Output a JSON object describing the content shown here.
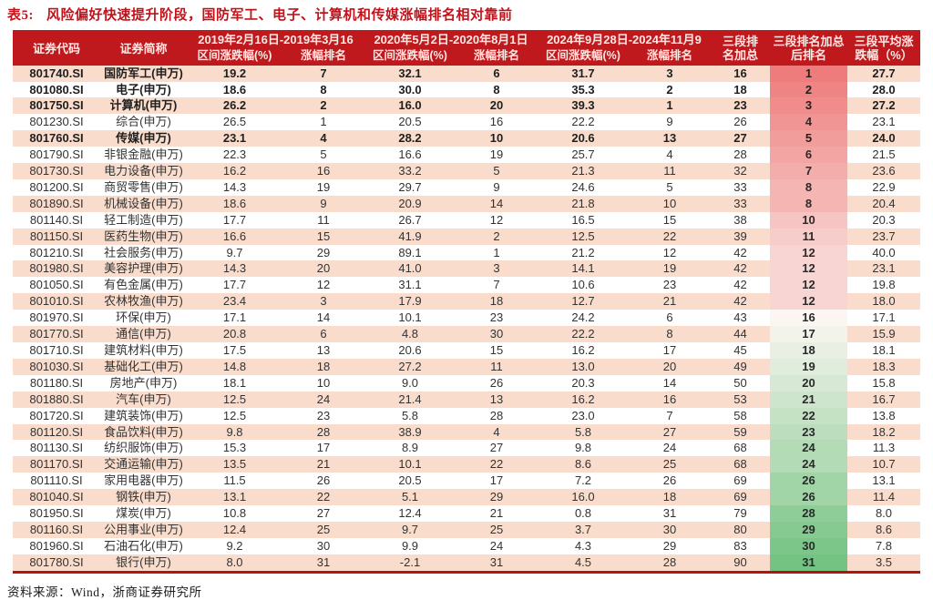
{
  "title": {
    "label": "表5:",
    "text": "风险偏好快速提升阶段，国防军工、电子、计算机和传媒涨幅排名相对靠前"
  },
  "table": {
    "headers": {
      "code": "证券代码",
      "name": "证券简称",
      "period1": "2019年2月16日-2019年3月16",
      "period2": "2020年5月2日-2020年8月1日",
      "period3": "2024年9月28日-2024年11月9",
      "change": "区间涨跌幅(%)",
      "rank": "涨幅排名",
      "sum_line1": "三段排",
      "sum_line2": "名加总",
      "final_line1": "三段排名加总",
      "final_line2": "后排名",
      "avg_line1": "三段平均涨",
      "avg_line2": "跌幅（%）"
    },
    "rows": [
      {
        "code": "801740.SI",
        "name": "国防军工(申万)",
        "p1_chg": "19.2",
        "p1_rank": "7",
        "p2_chg": "32.1",
        "p2_rank": "6",
        "p3_chg": "31.7",
        "p3_rank": "3",
        "rank_sum": "16",
        "final_rank": "1",
        "avg_chg": "27.7",
        "bold": true
      },
      {
        "code": "801080.SI",
        "name": "电子(申万)",
        "p1_chg": "18.6",
        "p1_rank": "8",
        "p2_chg": "30.0",
        "p2_rank": "8",
        "p3_chg": "35.3",
        "p3_rank": "2",
        "rank_sum": "18",
        "final_rank": "2",
        "avg_chg": "28.0",
        "bold": true
      },
      {
        "code": "801750.SI",
        "name": "计算机(申万)",
        "p1_chg": "26.2",
        "p1_rank": "2",
        "p2_chg": "16.0",
        "p2_rank": "20",
        "p3_chg": "39.3",
        "p3_rank": "1",
        "rank_sum": "23",
        "final_rank": "3",
        "avg_chg": "27.2",
        "bold": true
      },
      {
        "code": "801230.SI",
        "name": "综合(申万)",
        "p1_chg": "26.5",
        "p1_rank": "1",
        "p2_chg": "20.5",
        "p2_rank": "16",
        "p3_chg": "22.2",
        "p3_rank": "9",
        "rank_sum": "26",
        "final_rank": "4",
        "avg_chg": "23.1",
        "bold": false
      },
      {
        "code": "801760.SI",
        "name": "传媒(申万)",
        "p1_chg": "23.1",
        "p1_rank": "4",
        "p2_chg": "28.2",
        "p2_rank": "10",
        "p3_chg": "20.6",
        "p3_rank": "13",
        "rank_sum": "27",
        "final_rank": "5",
        "avg_chg": "24.0",
        "bold": true
      },
      {
        "code": "801790.SI",
        "name": "非银金融(申万)",
        "p1_chg": "22.3",
        "p1_rank": "5",
        "p2_chg": "16.6",
        "p2_rank": "19",
        "p3_chg": "25.7",
        "p3_rank": "4",
        "rank_sum": "28",
        "final_rank": "6",
        "avg_chg": "21.5",
        "bold": false
      },
      {
        "code": "801730.SI",
        "name": "电力设备(申万)",
        "p1_chg": "16.2",
        "p1_rank": "16",
        "p2_chg": "33.2",
        "p2_rank": "5",
        "p3_chg": "21.3",
        "p3_rank": "11",
        "rank_sum": "32",
        "final_rank": "7",
        "avg_chg": "23.6",
        "bold": false
      },
      {
        "code": "801200.SI",
        "name": "商贸零售(申万)",
        "p1_chg": "14.3",
        "p1_rank": "19",
        "p2_chg": "29.7",
        "p2_rank": "9",
        "p3_chg": "24.6",
        "p3_rank": "5",
        "rank_sum": "33",
        "final_rank": "8",
        "avg_chg": "22.9",
        "bold": false
      },
      {
        "code": "801890.SI",
        "name": "机械设备(申万)",
        "p1_chg": "18.6",
        "p1_rank": "9",
        "p2_chg": "20.9",
        "p2_rank": "14",
        "p3_chg": "21.8",
        "p3_rank": "10",
        "rank_sum": "33",
        "final_rank": "8",
        "avg_chg": "20.4",
        "bold": false
      },
      {
        "code": "801140.SI",
        "name": "轻工制造(申万)",
        "p1_chg": "17.7",
        "p1_rank": "11",
        "p2_chg": "26.7",
        "p2_rank": "12",
        "p3_chg": "16.5",
        "p3_rank": "15",
        "rank_sum": "38",
        "final_rank": "10",
        "avg_chg": "20.3",
        "bold": false
      },
      {
        "code": "801150.SI",
        "name": "医药生物(申万)",
        "p1_chg": "16.6",
        "p1_rank": "15",
        "p2_chg": "41.9",
        "p2_rank": "2",
        "p3_chg": "12.5",
        "p3_rank": "22",
        "rank_sum": "39",
        "final_rank": "11",
        "avg_chg": "23.7",
        "bold": false
      },
      {
        "code": "801210.SI",
        "name": "社会服务(申万)",
        "p1_chg": "9.7",
        "p1_rank": "29",
        "p2_chg": "89.1",
        "p2_rank": "1",
        "p3_chg": "21.2",
        "p3_rank": "12",
        "rank_sum": "42",
        "final_rank": "12",
        "avg_chg": "40.0",
        "bold": false
      },
      {
        "code": "801980.SI",
        "name": "美容护理(申万)",
        "p1_chg": "14.3",
        "p1_rank": "20",
        "p2_chg": "41.0",
        "p2_rank": "3",
        "p3_chg": "14.1",
        "p3_rank": "19",
        "rank_sum": "42",
        "final_rank": "12",
        "avg_chg": "23.1",
        "bold": false
      },
      {
        "code": "801050.SI",
        "name": "有色金属(申万)",
        "p1_chg": "17.7",
        "p1_rank": "12",
        "p2_chg": "31.1",
        "p2_rank": "7",
        "p3_chg": "10.6",
        "p3_rank": "23",
        "rank_sum": "42",
        "final_rank": "12",
        "avg_chg": "19.8",
        "bold": false
      },
      {
        "code": "801010.SI",
        "name": "农林牧渔(申万)",
        "p1_chg": "23.4",
        "p1_rank": "3",
        "p2_chg": "17.9",
        "p2_rank": "18",
        "p3_chg": "12.7",
        "p3_rank": "21",
        "rank_sum": "42",
        "final_rank": "12",
        "avg_chg": "18.0",
        "bold": false
      },
      {
        "code": "801970.SI",
        "name": "环保(申万)",
        "p1_chg": "17.1",
        "p1_rank": "14",
        "p2_chg": "10.1",
        "p2_rank": "23",
        "p3_chg": "24.2",
        "p3_rank": "6",
        "rank_sum": "43",
        "final_rank": "16",
        "avg_chg": "17.1",
        "bold": false
      },
      {
        "code": "801770.SI",
        "name": "通信(申万)",
        "p1_chg": "20.8",
        "p1_rank": "6",
        "p2_chg": "4.8",
        "p2_rank": "30",
        "p3_chg": "22.2",
        "p3_rank": "8",
        "rank_sum": "44",
        "final_rank": "17",
        "avg_chg": "15.9",
        "bold": false
      },
      {
        "code": "801710.SI",
        "name": "建筑材料(申万)",
        "p1_chg": "17.5",
        "p1_rank": "13",
        "p2_chg": "20.6",
        "p2_rank": "15",
        "p3_chg": "16.2",
        "p3_rank": "17",
        "rank_sum": "45",
        "final_rank": "18",
        "avg_chg": "18.1",
        "bold": false
      },
      {
        "code": "801030.SI",
        "name": "基础化工(申万)",
        "p1_chg": "14.8",
        "p1_rank": "18",
        "p2_chg": "27.2",
        "p2_rank": "11",
        "p3_chg": "13.0",
        "p3_rank": "20",
        "rank_sum": "49",
        "final_rank": "19",
        "avg_chg": "18.3",
        "bold": false
      },
      {
        "code": "801180.SI",
        "name": "房地产(申万)",
        "p1_chg": "18.1",
        "p1_rank": "10",
        "p2_chg": "9.0",
        "p2_rank": "26",
        "p3_chg": "20.3",
        "p3_rank": "14",
        "rank_sum": "50",
        "final_rank": "20",
        "avg_chg": "15.8",
        "bold": false
      },
      {
        "code": "801880.SI",
        "name": "汽车(申万)",
        "p1_chg": "12.5",
        "p1_rank": "24",
        "p2_chg": "21.4",
        "p2_rank": "13",
        "p3_chg": "16.2",
        "p3_rank": "16",
        "rank_sum": "53",
        "final_rank": "21",
        "avg_chg": "16.7",
        "bold": false
      },
      {
        "code": "801720.SI",
        "name": "建筑装饰(申万)",
        "p1_chg": "12.5",
        "p1_rank": "23",
        "p2_chg": "5.8",
        "p2_rank": "28",
        "p3_chg": "23.0",
        "p3_rank": "7",
        "rank_sum": "58",
        "final_rank": "22",
        "avg_chg": "13.8",
        "bold": false
      },
      {
        "code": "801120.SI",
        "name": "食品饮料(申万)",
        "p1_chg": "9.8",
        "p1_rank": "28",
        "p2_chg": "38.9",
        "p2_rank": "4",
        "p3_chg": "5.8",
        "p3_rank": "27",
        "rank_sum": "59",
        "final_rank": "23",
        "avg_chg": "18.2",
        "bold": false
      },
      {
        "code": "801130.SI",
        "name": "纺织服饰(申万)",
        "p1_chg": "15.3",
        "p1_rank": "17",
        "p2_chg": "8.9",
        "p2_rank": "27",
        "p3_chg": "9.8",
        "p3_rank": "24",
        "rank_sum": "68",
        "final_rank": "24",
        "avg_chg": "11.3",
        "bold": false
      },
      {
        "code": "801170.SI",
        "name": "交通运输(申万)",
        "p1_chg": "13.5",
        "p1_rank": "21",
        "p2_chg": "10.1",
        "p2_rank": "22",
        "p3_chg": "8.6",
        "p3_rank": "25",
        "rank_sum": "68",
        "final_rank": "24",
        "avg_chg": "10.7",
        "bold": false
      },
      {
        "code": "801110.SI",
        "name": "家用电器(申万)",
        "p1_chg": "11.5",
        "p1_rank": "26",
        "p2_chg": "20.5",
        "p2_rank": "17",
        "p3_chg": "7.2",
        "p3_rank": "26",
        "rank_sum": "69",
        "final_rank": "26",
        "avg_chg": "13.1",
        "bold": false
      },
      {
        "code": "801040.SI",
        "name": "钢铁(申万)",
        "p1_chg": "13.1",
        "p1_rank": "22",
        "p2_chg": "5.1",
        "p2_rank": "29",
        "p3_chg": "16.0",
        "p3_rank": "18",
        "rank_sum": "69",
        "final_rank": "26",
        "avg_chg": "11.4",
        "bold": false
      },
      {
        "code": "801950.SI",
        "name": "煤炭(申万)",
        "p1_chg": "10.8",
        "p1_rank": "27",
        "p2_chg": "12.4",
        "p2_rank": "21",
        "p3_chg": "0.8",
        "p3_rank": "31",
        "rank_sum": "79",
        "final_rank": "28",
        "avg_chg": "8.0",
        "bold": false
      },
      {
        "code": "801160.SI",
        "name": "公用事业(申万)",
        "p1_chg": "12.4",
        "p1_rank": "25",
        "p2_chg": "9.7",
        "p2_rank": "25",
        "p3_chg": "3.7",
        "p3_rank": "30",
        "rank_sum": "80",
        "final_rank": "29",
        "avg_chg": "8.6",
        "bold": false
      },
      {
        "code": "801960.SI",
        "name": "石油石化(申万)",
        "p1_chg": "9.2",
        "p1_rank": "30",
        "p2_chg": "9.9",
        "p2_rank": "24",
        "p3_chg": "4.3",
        "p3_rank": "29",
        "rank_sum": "83",
        "final_rank": "30",
        "avg_chg": "7.8",
        "bold": false
      },
      {
        "code": "801780.SI",
        "name": "银行(申万)",
        "p1_chg": "8.0",
        "p1_rank": "31",
        "p2_chg": "-2.1",
        "p2_rank": "31",
        "p3_chg": "4.5",
        "p3_rank": "28",
        "rank_sum": "90",
        "final_rank": "31",
        "avg_chg": "3.5",
        "bold": false
      }
    ]
  },
  "footer": {
    "source": "资料来源：Wind，浙商证券研究所"
  },
  "colors": {
    "header_bg": "#bf181d",
    "header_text": "#ffe9e4",
    "title": "#c3121a",
    "stripe": "#f9dccb",
    "bottom_rule": "#b01511",
    "rank_gradient": {
      "top": "#ee7c7c",
      "mid": "#fbf6f2",
      "bottom": "#74c382"
    }
  }
}
